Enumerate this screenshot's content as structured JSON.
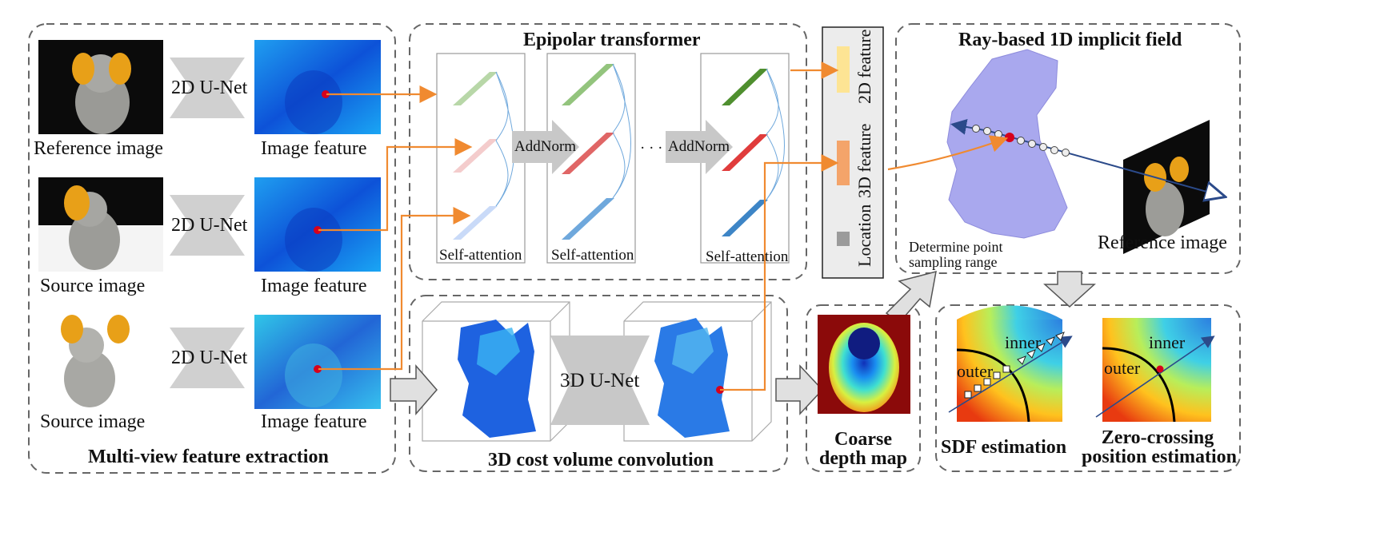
{
  "panels": {
    "feature_extraction": {
      "title": "Multi-view feature extraction",
      "rows": [
        {
          "network": "2D U-Net",
          "input_label": "Reference image",
          "output_label": "Image feature"
        },
        {
          "network": "2D U-Net",
          "input_label": "Source image",
          "output_label": "Image feature"
        },
        {
          "network": "2D U-Net",
          "input_label": "Source image",
          "output_label": "Image feature"
        }
      ]
    },
    "epipolar": {
      "title": "Epipolar transformer",
      "block_label": "Self-attention",
      "addnorm": "AddNorm",
      "ellipsis": "· · ·"
    },
    "features": {
      "items": [
        "2D feature",
        "3D feature",
        "Location"
      ],
      "colors": [
        "#fde494",
        "#f4a46a",
        "#9b9b9b"
      ]
    },
    "ray_field": {
      "title": "Ray-based 1D implicit field",
      "range_label": "Determine point sampling range",
      "reference_label": "Reference image"
    },
    "cost_volume": {
      "title": "3D cost volume convolution",
      "network": "3D U-Net"
    },
    "depth": {
      "title_line1": "Coarse",
      "title_line2": "depth map"
    },
    "sdf": {
      "left_title": "SDF estimation",
      "right_title_line1": "Zero-crossing",
      "right_title_line2": "position estimation",
      "outer": "outer",
      "inner": "inner"
    }
  },
  "colors": {
    "arrow_orange": "#f08a30",
    "ray_blue": "#2b4a8a",
    "sample_red": "#d6001c",
    "gray_block": "#c8c8c8",
    "green": "#6aa84f",
    "red": "#e06666",
    "blue": "#6fa8dc",
    "bunny_lavender": "#a9a8ee"
  }
}
